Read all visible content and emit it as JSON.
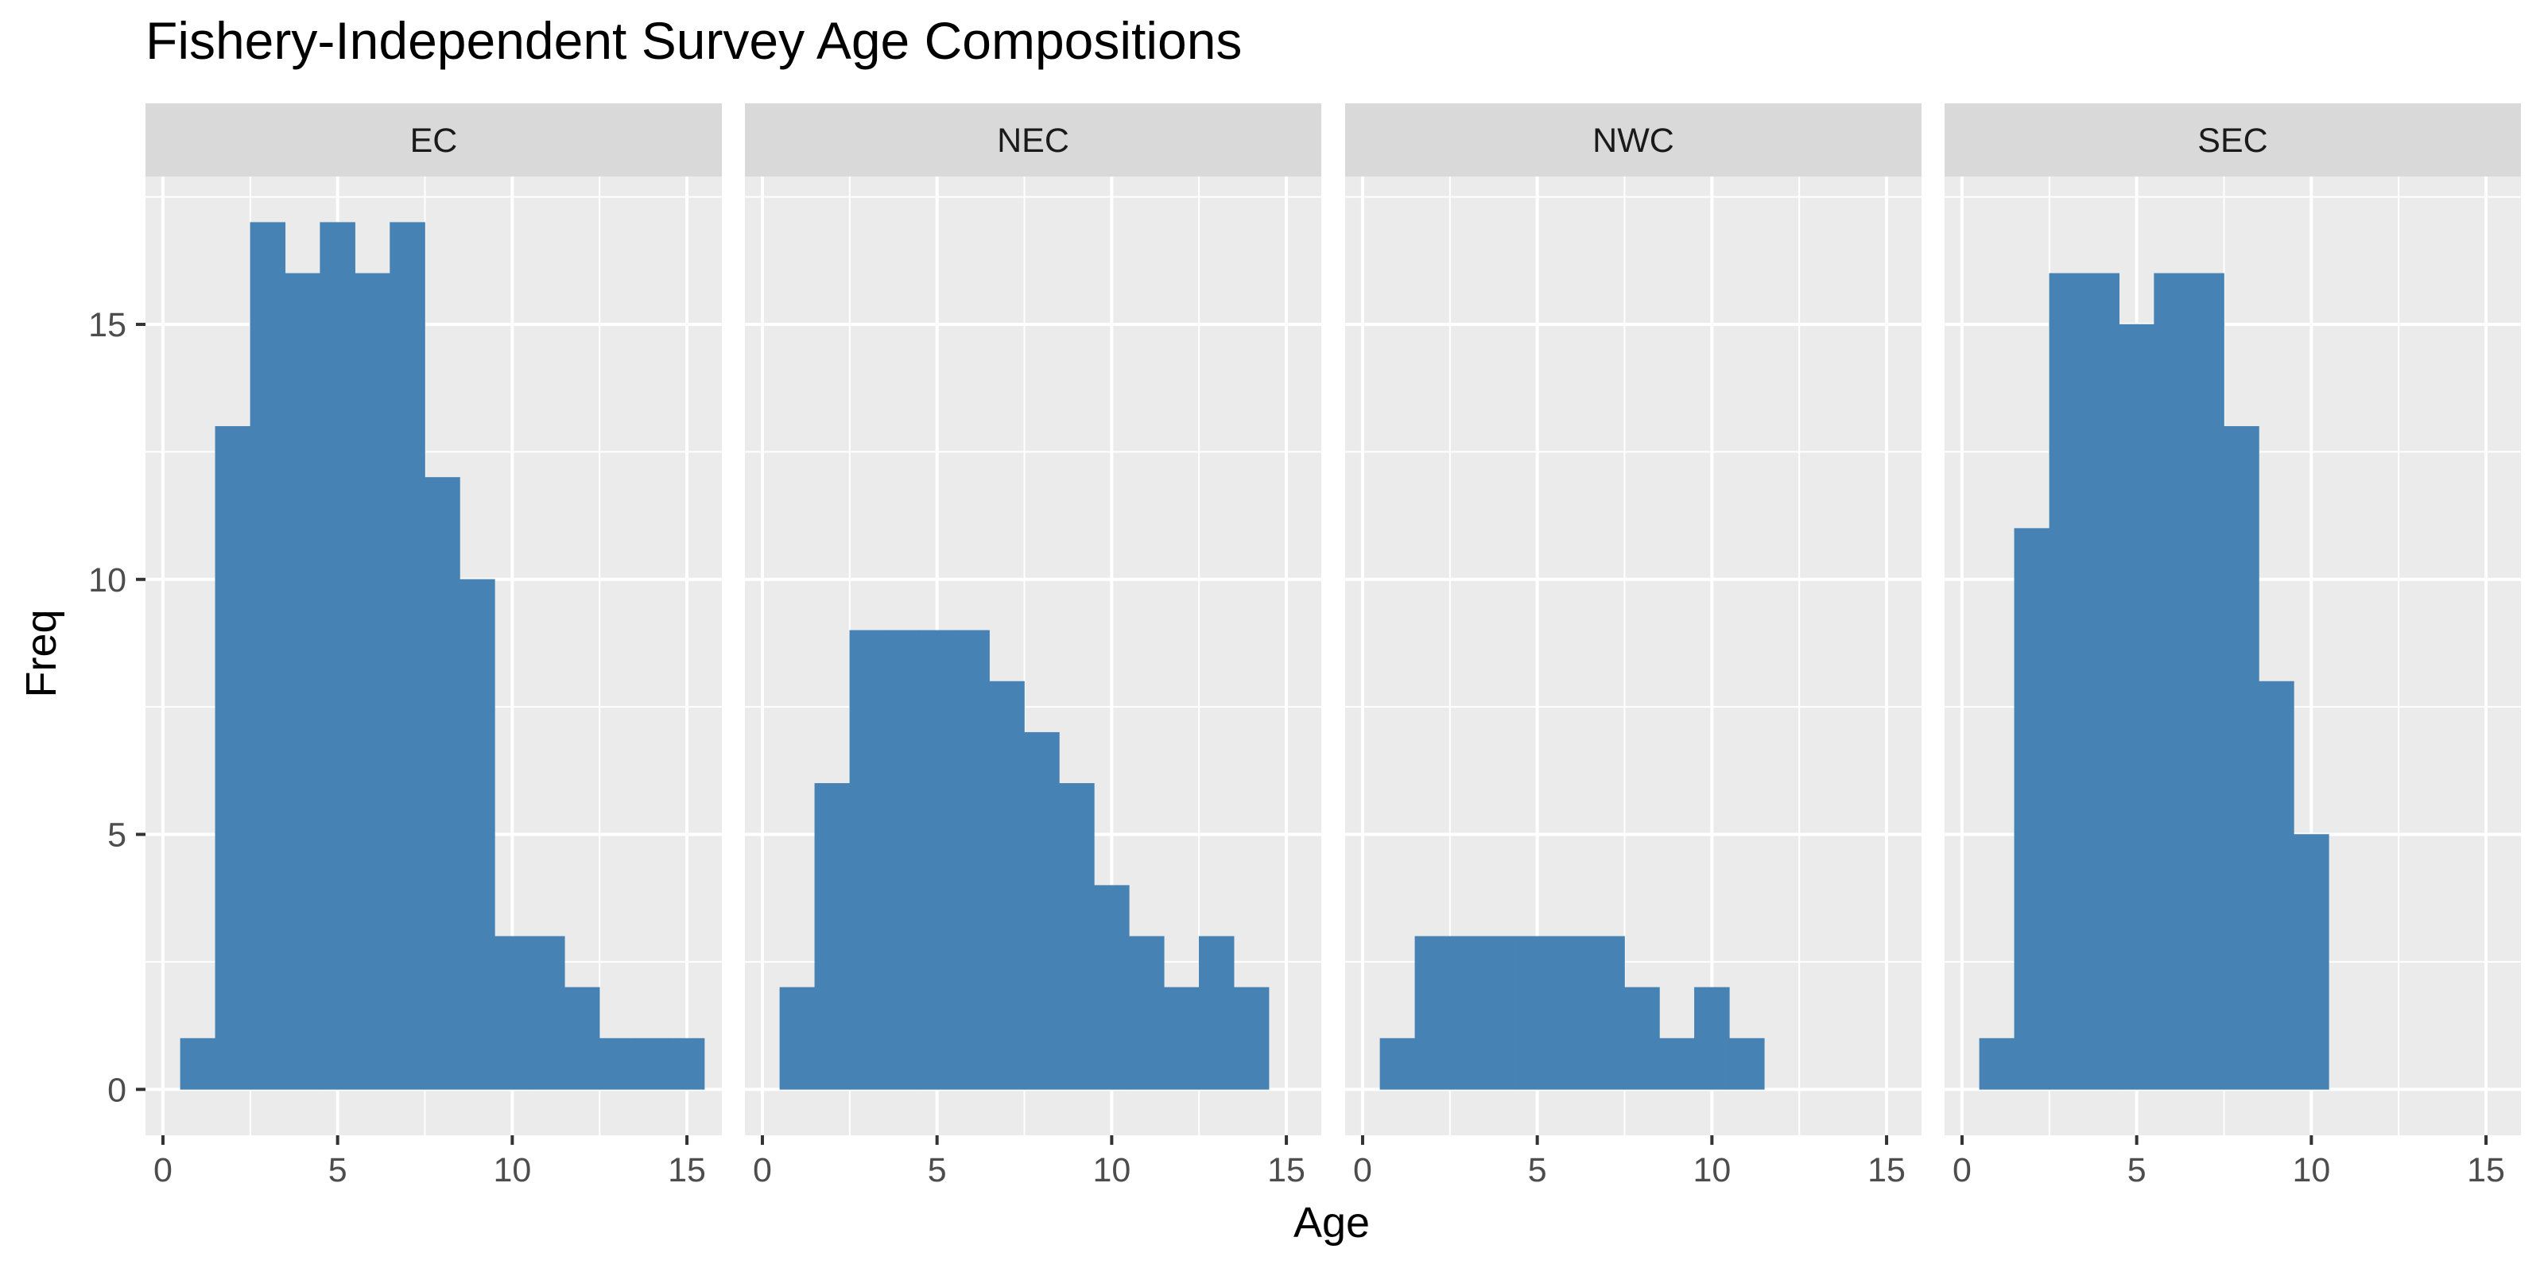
{
  "chart_data": {
    "type": "bar",
    "title": "Fishery-Independent Survey  Age Compositions",
    "xlabel": "Age",
    "ylabel": "Freq",
    "xlim": [
      -0.5,
      16.0
    ],
    "ylim": [
      -0.9,
      17.9
    ],
    "x_ticks": [
      0,
      5,
      10,
      15
    ],
    "y_ticks": [
      0,
      5,
      10,
      15
    ],
    "grid": true,
    "colors": {
      "bar": "#4682B4",
      "panel_bg": "#EBEBEB",
      "strip_bg": "#D9D9D9",
      "grid": "#FFFFFF",
      "text": "#000000",
      "tick_text": "#4D4D4D"
    },
    "bin_width": 1,
    "panels": [
      {
        "name": "EC",
        "x": [
          1,
          2,
          3,
          4,
          5,
          6,
          7,
          8,
          9,
          10,
          11,
          12,
          13,
          14,
          15
        ],
        "values": [
          1,
          13,
          17,
          16,
          17,
          16,
          17,
          12,
          10,
          3,
          3,
          2,
          1,
          1,
          1
        ]
      },
      {
        "name": "NEC",
        "x": [
          1,
          2,
          3,
          4,
          5,
          6,
          7,
          8,
          9,
          10,
          11,
          12,
          13,
          14
        ],
        "values": [
          2,
          6,
          9,
          9,
          9,
          9,
          8,
          7,
          6,
          4,
          3,
          2,
          3,
          2
        ]
      },
      {
        "name": "NWC",
        "x": [
          1,
          2,
          3,
          4,
          5,
          6,
          7,
          8,
          9,
          10,
          11
        ],
        "values": [
          1,
          3,
          3,
          3,
          3,
          3,
          3,
          2,
          1,
          2,
          1
        ]
      },
      {
        "name": "SEC",
        "x": [
          1,
          2,
          3,
          4,
          5,
          6,
          7,
          8,
          9,
          10
        ],
        "values": [
          1,
          11,
          16,
          16,
          15,
          16,
          16,
          13,
          8,
          5
        ]
      }
    ]
  }
}
